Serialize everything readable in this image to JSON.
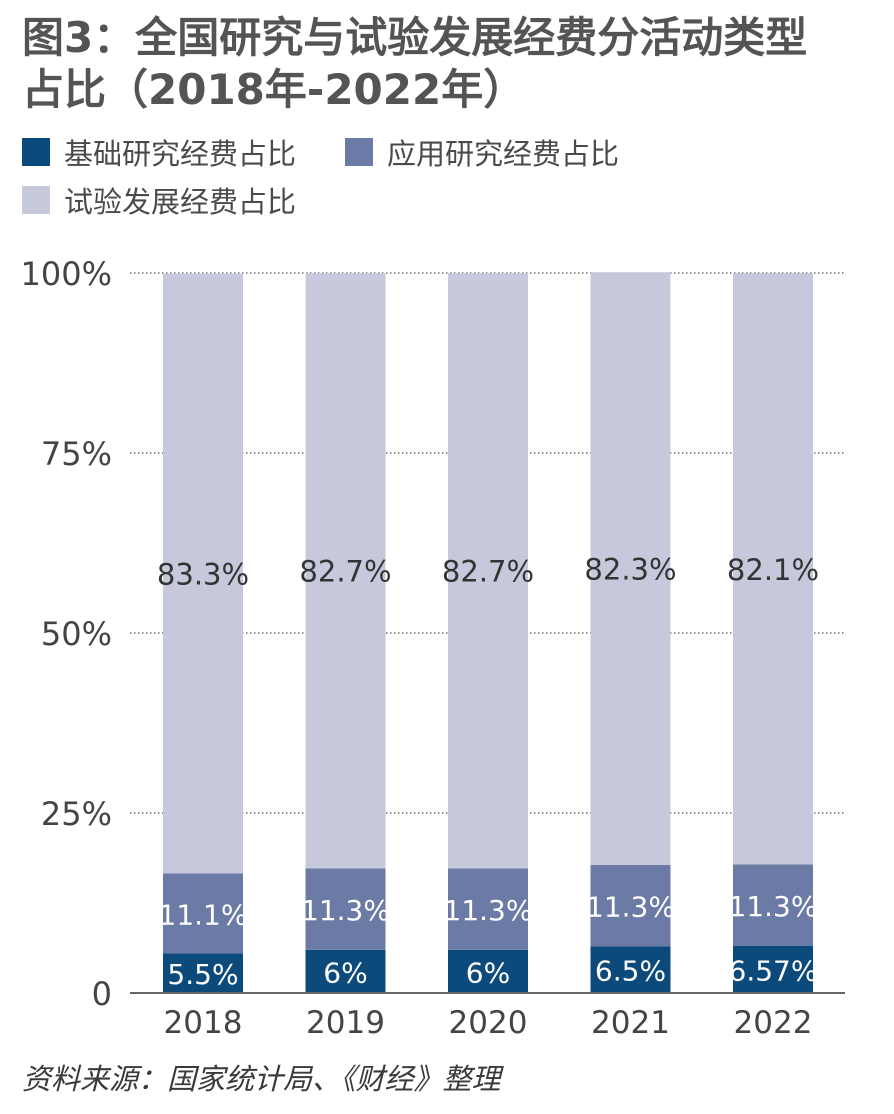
{
  "title_line1": "图3：全国研究与试验发展经费分活动类型",
  "title_line2": "占比（2018年-2022年）",
  "source": "资料来源：国家统计局、《财经》整理",
  "colors": {
    "basic": "#0d4a7c",
    "applied": "#6c7aa6",
    "experimental": "#c6c8dc",
    "grid": "#555555",
    "axis": "#666666"
  },
  "chart_data": {
    "type": "bar",
    "stacked": true,
    "categories": [
      "2018",
      "2019",
      "2020",
      "2021",
      "2022"
    ],
    "series": [
      {
        "name": "基础研究经费占比",
        "values": [
          5.5,
          6,
          6,
          6.5,
          6.57
        ],
        "labels": [
          "5.5%",
          "6%",
          "6%",
          "6.5%",
          "6.57%"
        ]
      },
      {
        "name": "应用研究经费占比",
        "values": [
          11.1,
          11.3,
          11.3,
          11.3,
          11.3
        ],
        "labels": [
          "11.1%",
          "11.3%",
          "11.3%",
          "11.3%",
          "11.3%"
        ]
      },
      {
        "name": "试验发展经费占比",
        "values": [
          83.3,
          82.7,
          82.7,
          82.3,
          82.1
        ],
        "labels": [
          "83.3%",
          "82.7%",
          "82.7%",
          "82.3%",
          "82.1%"
        ]
      }
    ],
    "ylim": [
      0,
      100
    ],
    "yticks": [
      0,
      25,
      50,
      75,
      100
    ],
    "yticklabels": [
      "0",
      "25%",
      "50%",
      "75%",
      "100%"
    ],
    "grid": true,
    "legend_position": "top-left"
  }
}
